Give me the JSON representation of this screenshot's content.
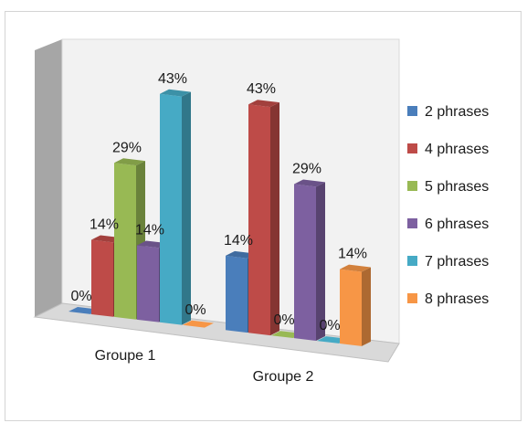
{
  "chart_data": {
    "type": "bar",
    "style": "3d-clustered-column",
    "categories": [
      "Groupe 1",
      "Groupe 2"
    ],
    "series": [
      {
        "name": "2 phrases",
        "values": [
          0,
          14
        ],
        "labels": [
          "0%",
          "14%"
        ],
        "color": "#4a7ebb"
      },
      {
        "name": "4 phrases",
        "values": [
          14,
          43
        ],
        "labels": [
          "14%",
          "43%"
        ],
        "color": "#be4b48"
      },
      {
        "name": "5 phrases",
        "values": [
          29,
          0
        ],
        "labels": [
          "29%",
          "0%"
        ],
        "color": "#98b954"
      },
      {
        "name": "6 phrases",
        "values": [
          14,
          29
        ],
        "labels": [
          "14%",
          "29%"
        ],
        "color": "#7d60a0"
      },
      {
        "name": "7 phrases",
        "values": [
          43,
          0
        ],
        "labels": [
          "43%",
          "0%"
        ],
        "color": "#46aac5"
      },
      {
        "name": "8 phrases",
        "values": [
          0,
          14
        ],
        "labels": [
          "0%",
          "14%"
        ],
        "color": "#f79646"
      }
    ],
    "ylim": [
      0,
      43
    ],
    "legend_position": "right",
    "grid": false
  }
}
